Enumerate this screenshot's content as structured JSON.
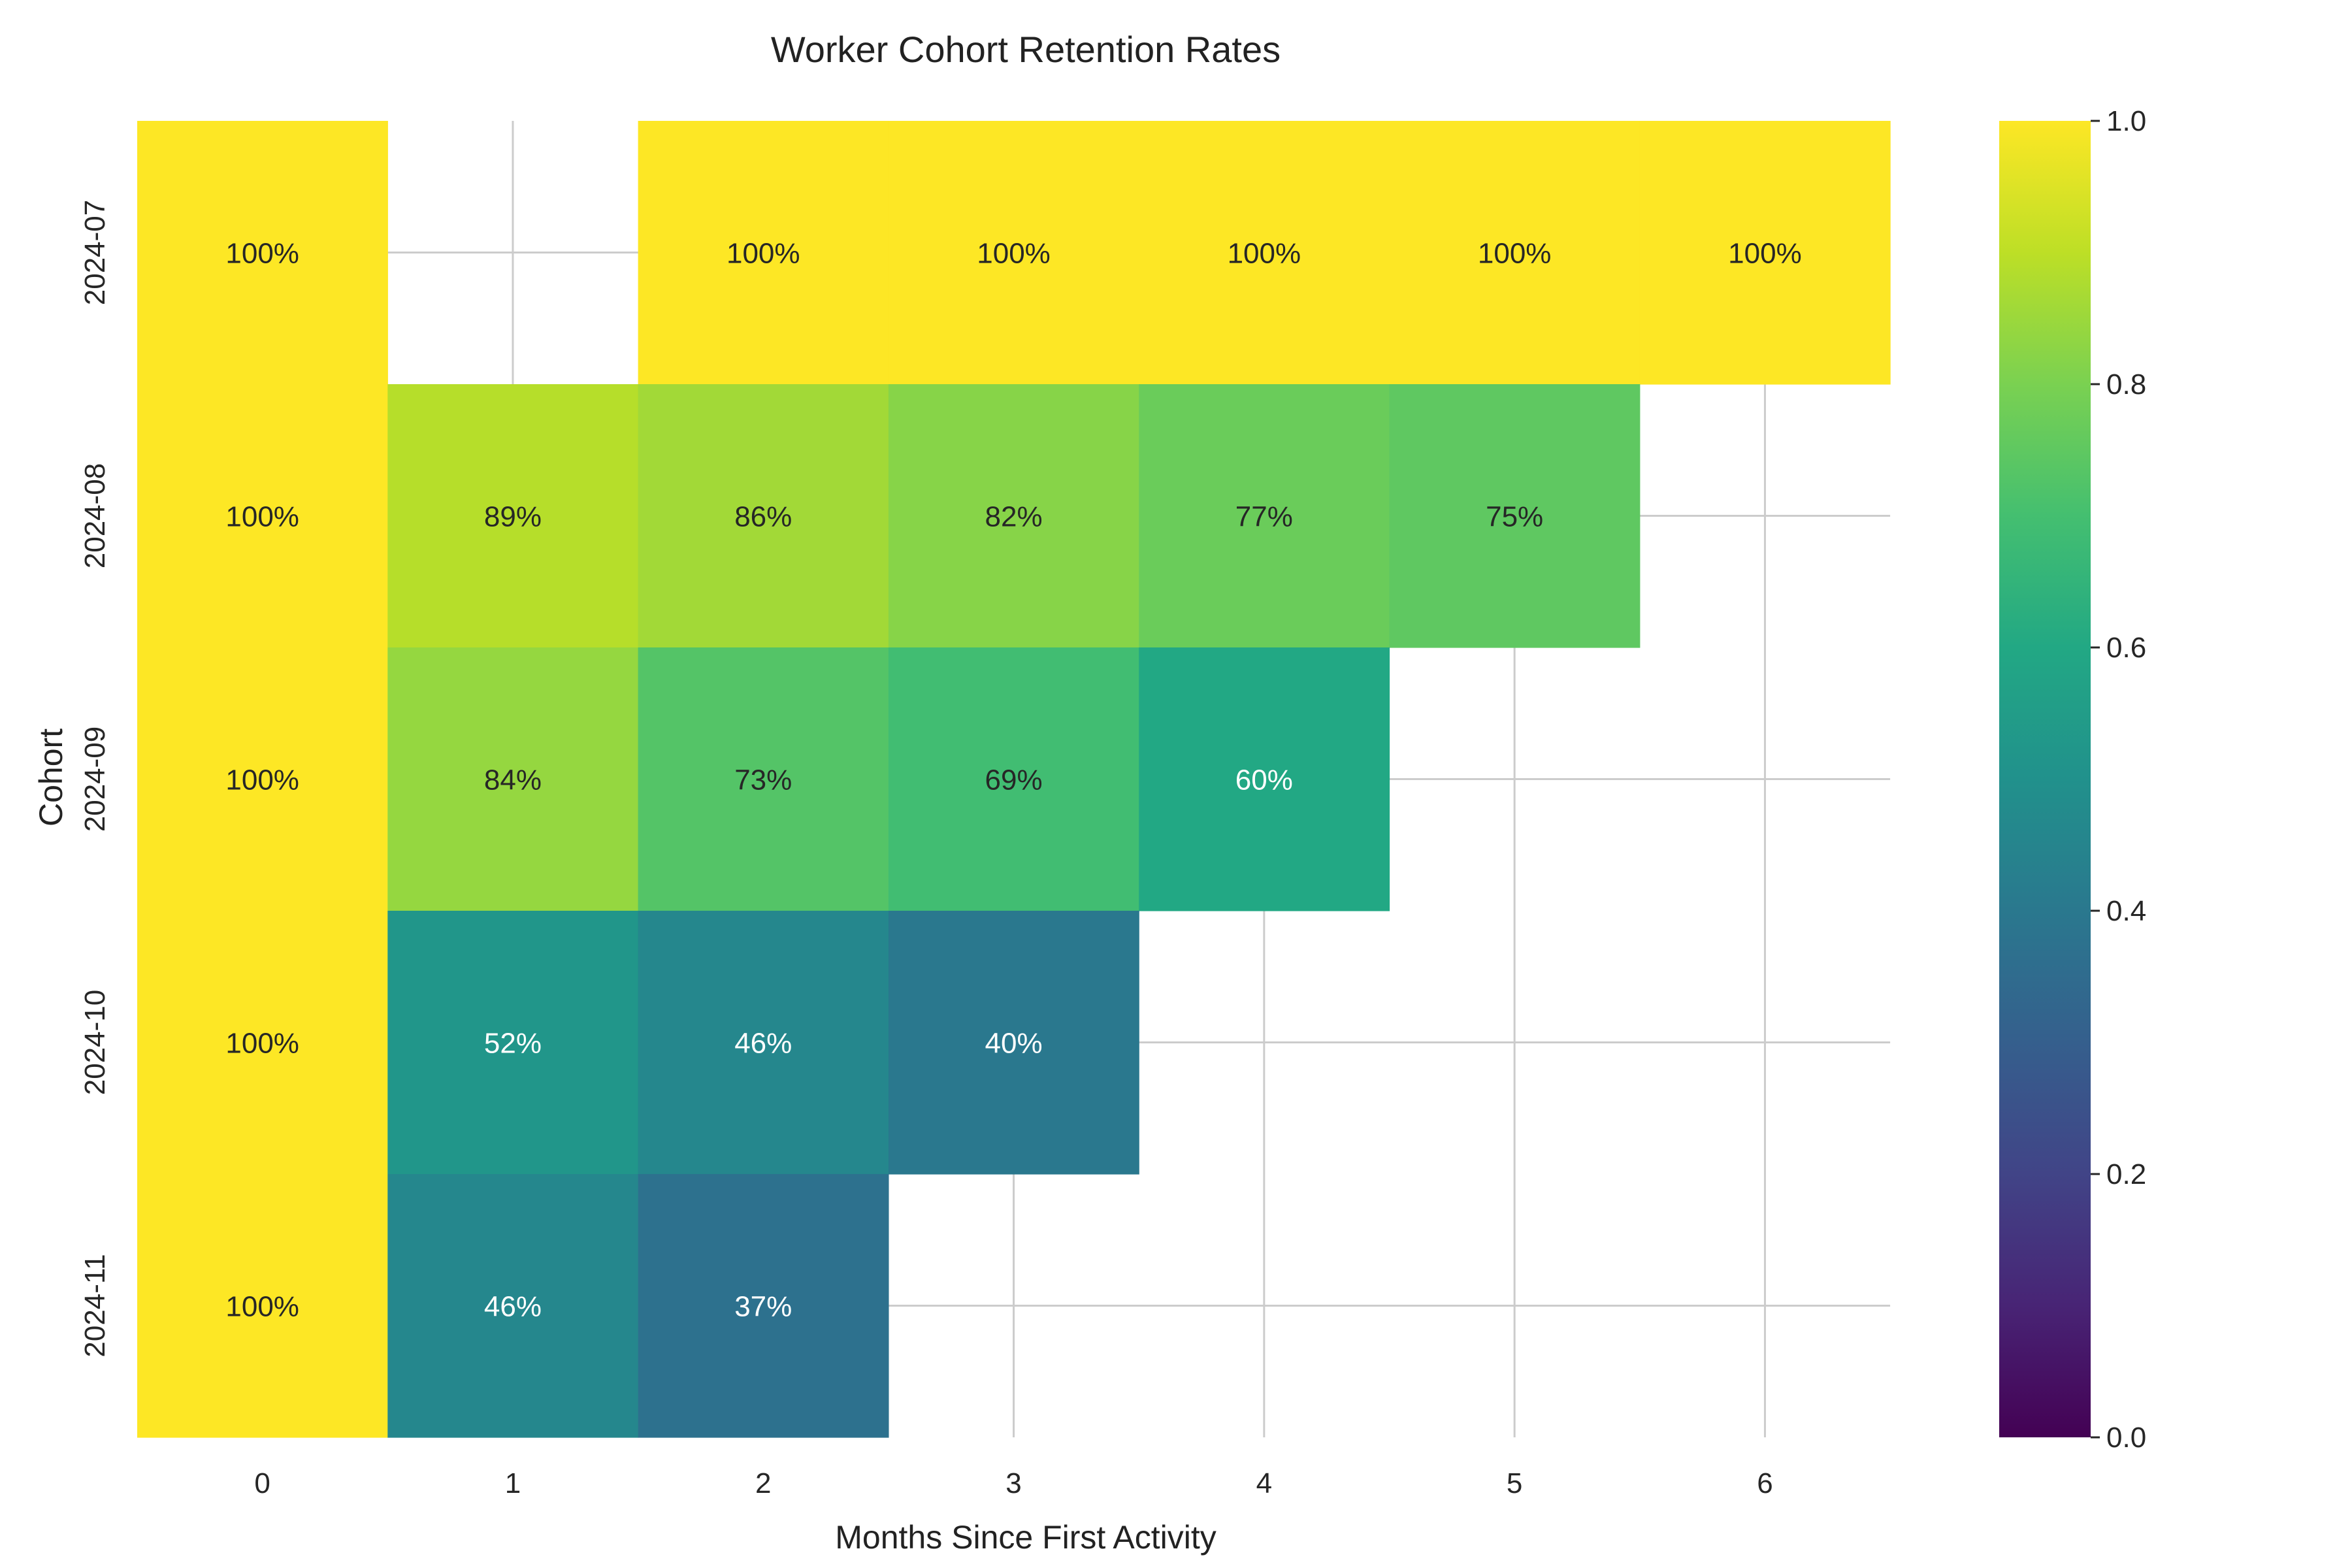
{
  "chart_data": {
    "type": "heatmap",
    "title": "Worker Cohort Retention Rates",
    "xlabel": "Months Since First Activity",
    "ylabel": "Cohort",
    "x": [
      "0",
      "1",
      "2",
      "3",
      "4",
      "5",
      "6"
    ],
    "y": [
      "2024-07",
      "2024-08",
      "2024-09",
      "2024-10",
      "2024-11"
    ],
    "values": [
      [
        1.0,
        null,
        1.0,
        1.0,
        1.0,
        1.0,
        1.0
      ],
      [
        1.0,
        0.89,
        0.86,
        0.82,
        0.77,
        0.75,
        null
      ],
      [
        1.0,
        0.84,
        0.73,
        0.69,
        0.6,
        null,
        null
      ],
      [
        1.0,
        0.52,
        0.46,
        0.4,
        null,
        null,
        null
      ],
      [
        1.0,
        0.46,
        0.37,
        null,
        null,
        null,
        null
      ]
    ],
    "labels": [
      [
        "100%",
        "",
        "100%",
        "100%",
        "100%",
        "100%",
        "100%"
      ],
      [
        "100%",
        "89%",
        "86%",
        "82%",
        "77%",
        "75%",
        ""
      ],
      [
        "100%",
        "84%",
        "73%",
        "69%",
        "60%",
        "",
        ""
      ],
      [
        "100%",
        "52%",
        "46%",
        "40%",
        "",
        "",
        ""
      ],
      [
        "100%",
        "46%",
        "37%",
        "",
        "",
        "",
        ""
      ]
    ],
    "colormap": "viridis",
    "vmin": 0.0,
    "vmax": 1.0,
    "colorbar_ticks": [
      "0.0",
      "0.2",
      "0.4",
      "0.6",
      "0.8",
      "1.0"
    ],
    "grid": true
  }
}
